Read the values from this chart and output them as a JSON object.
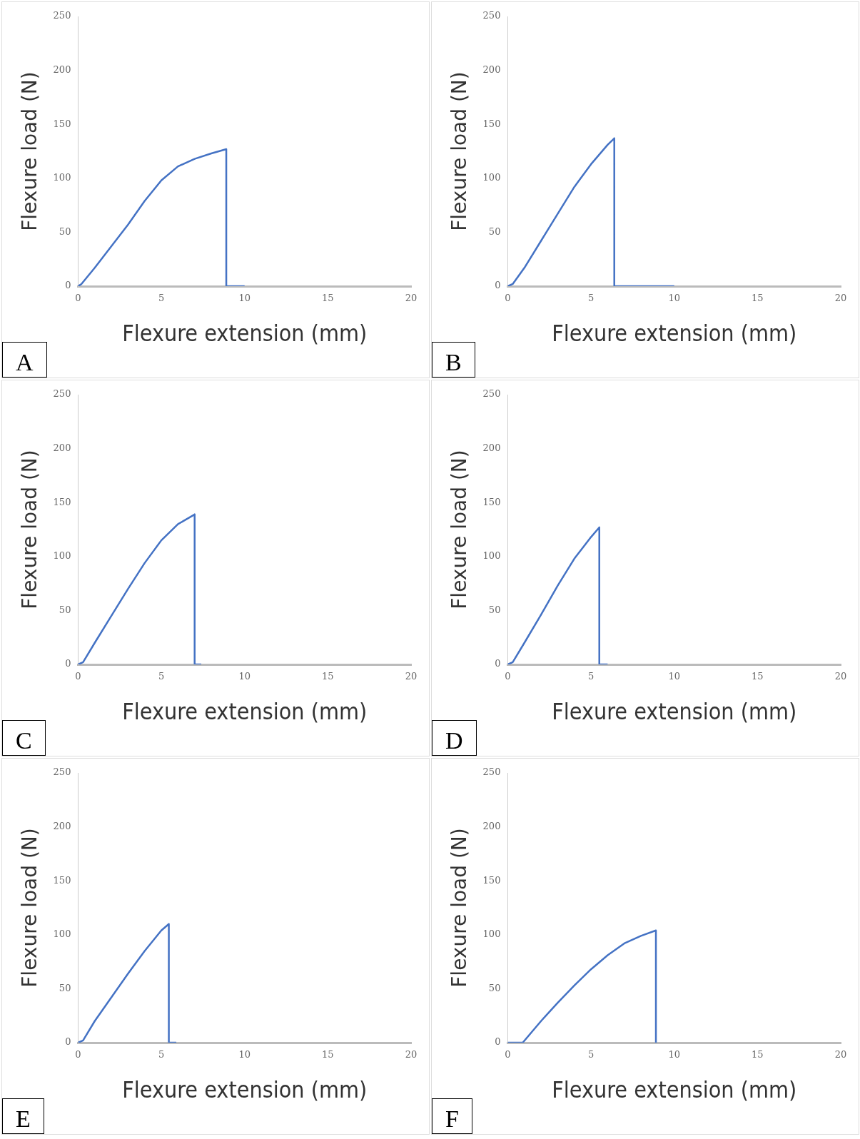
{
  "chart_data": [
    {
      "type": "line",
      "xlabel": "Flexure extension (mm)",
      "ylabel": "Flexure load (N)",
      "annotations": [
        "A"
      ],
      "xlim": [
        0,
        20
      ],
      "xticks": [
        0,
        5,
        10,
        15,
        20
      ],
      "ylim": [
        0,
        250
      ],
      "yticks": [
        0,
        50,
        100,
        150,
        200,
        250
      ],
      "legend": false,
      "grid": false,
      "marker": "none",
      "series": [
        {
          "color": "#4472c4",
          "x": [
            0,
            0.2,
            1,
            2,
            3,
            4,
            5,
            6,
            7,
            8,
            8.9,
            8.9,
            10
          ],
          "values": [
            0,
            2,
            17,
            37,
            57,
            79,
            98,
            111,
            118,
            123,
            127,
            0,
            0
          ]
        }
      ]
    },
    {
      "type": "line",
      "xlabel": "Flexure extension (mm)",
      "ylabel": "Flexure load (N)",
      "annotations": [
        "B"
      ],
      "xlim": [
        0,
        20
      ],
      "xticks": [
        0,
        5,
        10,
        15,
        20
      ],
      "ylim": [
        0,
        250
      ],
      "yticks": [
        0,
        50,
        100,
        150,
        200,
        250
      ],
      "legend": false,
      "grid": false,
      "marker": "none",
      "series": [
        {
          "color": "#4472c4",
          "x": [
            0,
            0.3,
            1,
            2,
            3,
            4,
            5,
            6,
            6.4,
            6.4,
            10
          ],
          "values": [
            0,
            2,
            17,
            42,
            67,
            92,
            113,
            131,
            137,
            0,
            0
          ]
        }
      ]
    },
    {
      "type": "line",
      "xlabel": "Flexure extension (mm)",
      "ylabel": "Flexure load (N)",
      "annotations": [
        "C"
      ],
      "xlim": [
        0,
        20
      ],
      "xticks": [
        0,
        5,
        10,
        15,
        20
      ],
      "ylim": [
        0,
        250
      ],
      "yticks": [
        0,
        50,
        100,
        150,
        200,
        250
      ],
      "legend": false,
      "grid": false,
      "marker": "none",
      "series": [
        {
          "color": "#4472c4",
          "x": [
            0,
            0.3,
            1,
            2,
            3,
            4,
            5,
            6,
            7,
            7,
            7.4
          ],
          "values": [
            0,
            2,
            20,
            45,
            70,
            94,
            115,
            130,
            139,
            0,
            0
          ]
        }
      ]
    },
    {
      "type": "line",
      "xlabel": "Flexure extension (mm)",
      "ylabel": "Flexure load (N)",
      "annotations": [
        "D"
      ],
      "xlim": [
        0,
        20
      ],
      "xticks": [
        0,
        5,
        10,
        15,
        20
      ],
      "ylim": [
        0,
        250
      ],
      "yticks": [
        0,
        50,
        100,
        150,
        200,
        250
      ],
      "legend": false,
      "grid": false,
      "marker": "none",
      "series": [
        {
          "color": "#4472c4",
          "x": [
            0,
            0.3,
            1,
            2,
            3,
            4,
            5,
            5.5,
            5.5,
            6
          ],
          "values": [
            0,
            2,
            20,
            46,
            73,
            98,
            118,
            127,
            0,
            0
          ]
        }
      ]
    },
    {
      "type": "line",
      "xlabel": "Flexure extension (mm)",
      "ylabel": "Flexure load (N)",
      "annotations": [
        "E"
      ],
      "xlim": [
        0,
        20
      ],
      "xticks": [
        0,
        5,
        10,
        15,
        20
      ],
      "ylim": [
        0,
        250
      ],
      "yticks": [
        0,
        50,
        100,
        150,
        200,
        250
      ],
      "legend": false,
      "grid": false,
      "marker": "none",
      "series": [
        {
          "color": "#4472c4",
          "x": [
            0,
            0.3,
            1,
            2,
            3,
            4,
            5,
            5.45,
            5.45,
            5.9
          ],
          "values": [
            0,
            2,
            20,
            42,
            64,
            85,
            104,
            110,
            0,
            0
          ]
        }
      ]
    },
    {
      "type": "line",
      "xlabel": "Flexure extension (mm)",
      "ylabel": "Flexure load (N)",
      "annotations": [
        "F"
      ],
      "xlim": [
        0,
        20
      ],
      "xticks": [
        0,
        5,
        10,
        15,
        20
      ],
      "ylim": [
        0,
        250
      ],
      "yticks": [
        0,
        50,
        100,
        150,
        200,
        250
      ],
      "legend": false,
      "grid": false,
      "marker": "none",
      "series": [
        {
          "color": "#4472c4",
          "x": [
            0,
            0.9,
            2,
            3,
            4,
            5,
            6,
            7,
            8,
            8.9,
            8.9
          ],
          "values": [
            0,
            0,
            20,
            37,
            53,
            68,
            81,
            92,
            99,
            104,
            0
          ]
        }
      ]
    }
  ]
}
